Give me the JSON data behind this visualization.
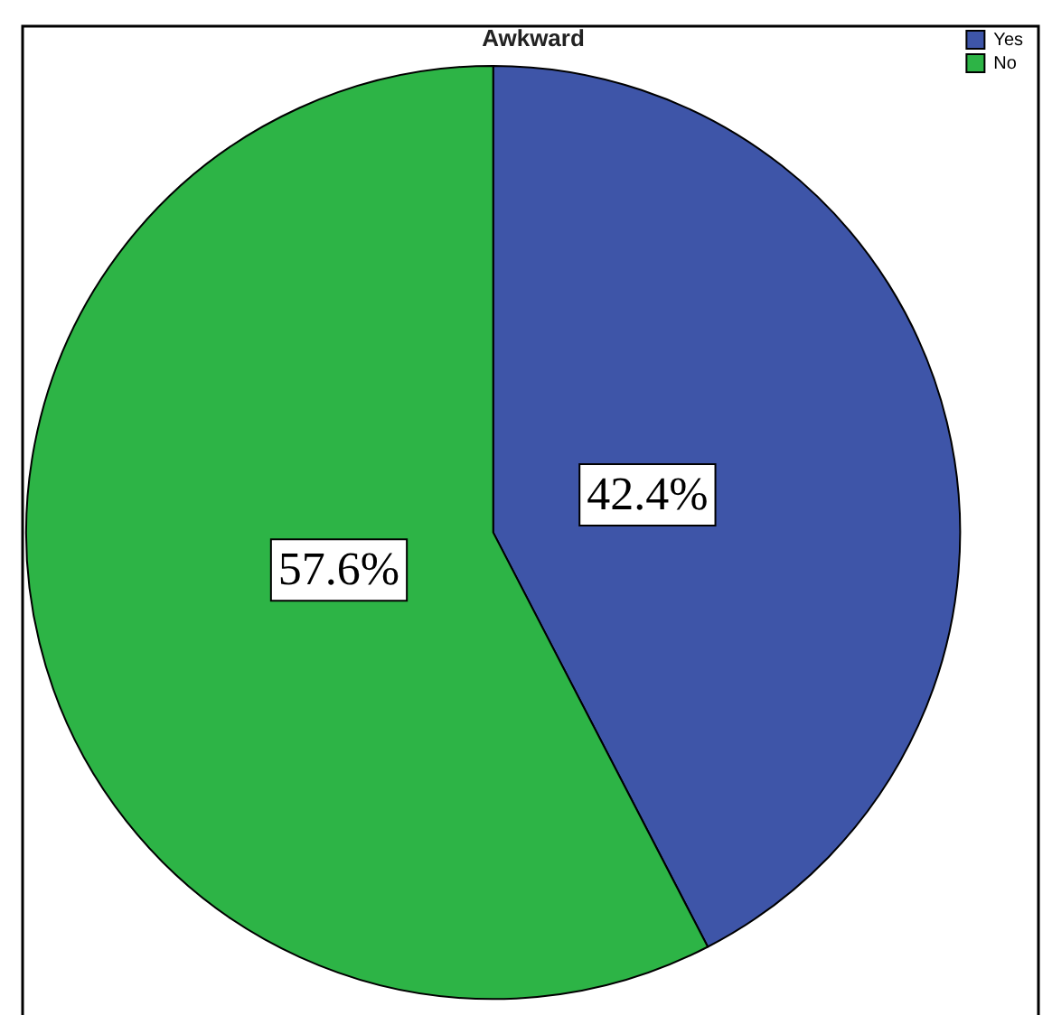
{
  "chart_data": {
    "type": "pie",
    "title": "Awkward",
    "categories": [
      "Yes",
      "No"
    ],
    "values": [
      42.4,
      57.6
    ],
    "colors": [
      "#3e55a8",
      "#2db446"
    ],
    "value_labels": [
      "42.4%",
      "57.6%"
    ],
    "legend": "top right"
  }
}
